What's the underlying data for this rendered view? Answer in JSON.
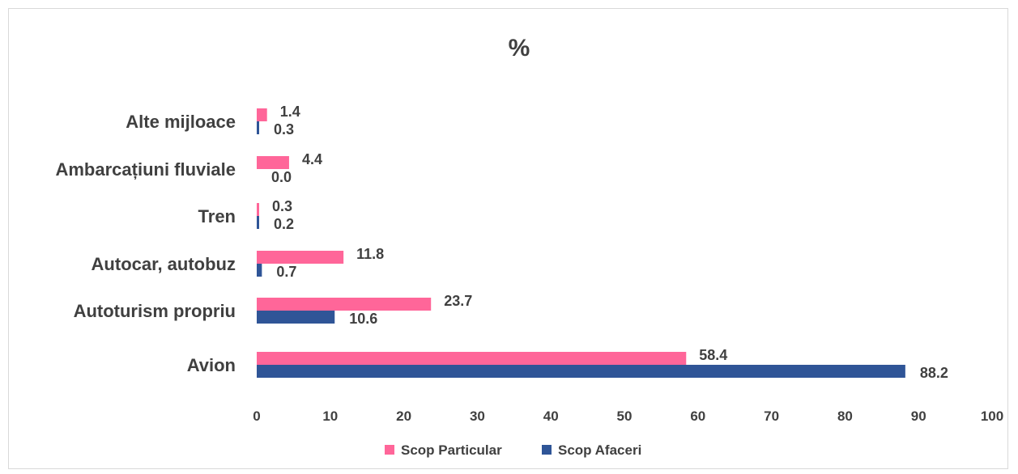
{
  "chart_data": {
    "type": "bar",
    "orientation": "horizontal",
    "title": "%",
    "categories": [
      "Avion",
      "Autoturism propriu",
      "Autocar, autobuz",
      "Tren",
      "Ambarcațiuni fluviale",
      "Alte mijloace"
    ],
    "series": [
      {
        "name": "Scop Particular",
        "color": "#ff6699",
        "values": [
          58.4,
          23.7,
          11.8,
          0.3,
          4.4,
          1.4
        ],
        "labels": [
          "58.4",
          "23.7",
          "11.8",
          "0.3",
          "4.4",
          "1.4"
        ]
      },
      {
        "name": "Scop Afaceri",
        "color": "#2f5597",
        "values": [
          88.2,
          10.6,
          0.7,
          0.2,
          0.0,
          0.3
        ],
        "labels": [
          "88.2",
          "10.6",
          "0.7",
          "0.2",
          "0.0",
          "0.3"
        ]
      }
    ],
    "xlim": [
      0,
      100
    ],
    "xticks": [
      "0",
      "10",
      "20",
      "30",
      "40",
      "50",
      "60",
      "70",
      "80",
      "90",
      "100"
    ],
    "grid": false,
    "legend_position": "bottom"
  }
}
